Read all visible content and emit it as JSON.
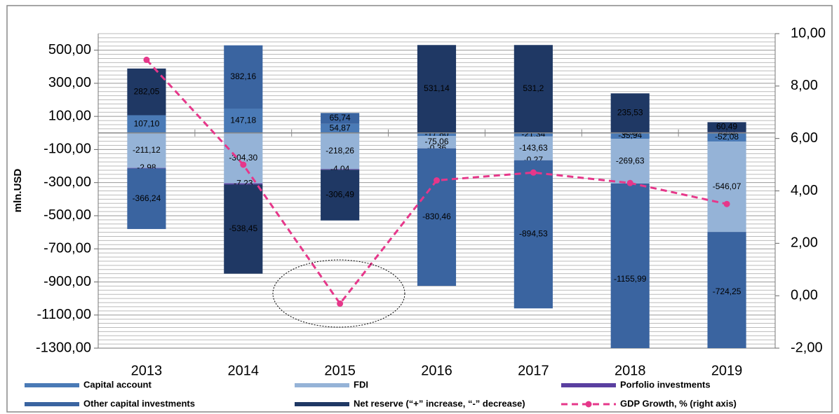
{
  "chart_data": {
    "type": "bar",
    "stacked": true,
    "y_label": "mln.USD",
    "categories": [
      "2013",
      "2014",
      "2015",
      "2016",
      "2017",
      "2018",
      "2019"
    ],
    "series": [
      {
        "name": "Capital account",
        "color": "#4a7ab6",
        "values": [
          107.1,
          147.18,
          54.87,
          -17.8,
          -21.34,
          -35.94,
          -52.08
        ],
        "value_labels": [
          "107,10",
          "147,18",
          "54,87",
          "-17,80",
          "-21,34",
          "-35,94",
          "-52,08"
        ]
      },
      {
        "name": "FDI",
        "color": "#95b3d7",
        "values": [
          -211.12,
          -304.3,
          -218.26,
          -75.06,
          -143.63,
          -269.63,
          -546.07
        ],
        "value_labels": [
          "-211,12",
          "-304,30",
          "-218,26",
          "-75,06",
          "-143,63",
          "-269,63",
          "-546,07"
        ]
      },
      {
        "name": "Porfolio investments",
        "color": "#5a3fa0",
        "values": [
          -2.98,
          -7.23,
          -4.04,
          -0.36,
          -0.27,
          3.6,
          4.65
        ],
        "value_labels": [
          "-2,98",
          "-7,23",
          "-4,04",
          "-0,36",
          "-0,27",
          "3,60",
          "4,65"
        ]
      },
      {
        "name": "Other capital investments",
        "color": "#3a64a0",
        "values": [
          -366.24,
          382.16,
          65.74,
          -830.46,
          -894.53,
          -1155.99,
          -724.25
        ],
        "value_labels": [
          "-366,24",
          "382,16",
          "65,74",
          "-830,46",
          "-894,53",
          "-1155,99",
          "-724,25"
        ]
      },
      {
        "name": "Net reserve (“+” increase, “-” decrease)",
        "color": "#1f3864",
        "values": [
          282.05,
          -538.45,
          -306.49,
          531.14,
          531.2,
          235.53,
          60.49
        ],
        "value_labels": [
          "282,05",
          "-538,45",
          "-306,49",
          "531,14",
          "531,2",
          "235,53",
          "60,49"
        ]
      },
      {
        "name": "GDP Growth, % (right axis)",
        "color": "#e6378a",
        "type": "line",
        "dashed": true,
        "axis": "y2",
        "values": [
          9.0,
          5.0,
          -0.3,
          4.4,
          4.7,
          4.3,
          3.5
        ]
      }
    ],
    "ylim": [
      -1300,
      600
    ],
    "yticks": [
      {
        "value": -1300,
        "label": "-1300,00"
      },
      {
        "value": -1100,
        "label": "-1100,00"
      },
      {
        "value": -900,
        "label": "-900,00"
      },
      {
        "value": -700,
        "label": "-700,00"
      },
      {
        "value": -500,
        "label": "-500,00"
      },
      {
        "value": -300,
        "label": "-300,00"
      },
      {
        "value": -100,
        "label": "-100,00"
      },
      {
        "value": 100,
        "label": "100,00"
      },
      {
        "value": 300,
        "label": "300,00"
      },
      {
        "value": 500,
        "label": "500,00"
      }
    ],
    "y2lim": [
      -2,
      10
    ],
    "y2ticks": [
      {
        "value": -2,
        "label": "-2,00"
      },
      {
        "value": 0,
        "label": "0,00"
      },
      {
        "value": 2,
        "label": "2,00"
      },
      {
        "value": 4,
        "label": "4,00"
      },
      {
        "value": 6,
        "label": "6,00"
      },
      {
        "value": 8,
        "label": "8,00"
      },
      {
        "value": 10,
        "label": "10,00"
      }
    ],
    "grid": true,
    "legend": "bottom"
  }
}
